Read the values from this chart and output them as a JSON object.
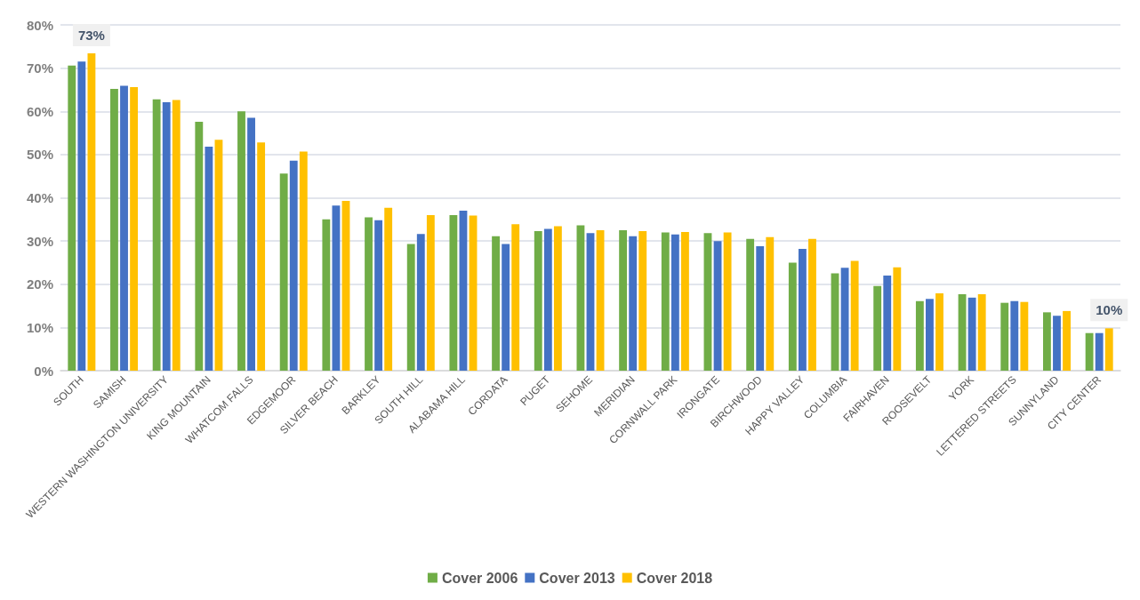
{
  "chart_data": {
    "type": "bar",
    "categories": [
      "SOUTH",
      "SAMISH",
      "WESTERN WASHINGTON UNIVERSITY",
      "KING MOUNTAIN",
      "WHATCOM FALLS",
      "EDGEMOOR",
      "SILVER BEACH",
      "BARKLEY",
      "SOUTH HILL",
      "ALABAMA HILL",
      "CORDATA",
      "PUGET",
      "SEHOME",
      "MERIDIAN",
      "CORNWALL PARK",
      "IRONGATE",
      "BIRCHWOOD",
      "HAPPY VALLEY",
      "COLUMBIA",
      "FAIRHAVEN",
      "ROOSEVELT",
      "YORK",
      "LETTERED STREETS",
      "SUNNYLAND",
      "CITY CENTER"
    ],
    "series": [
      {
        "name": "Cover 2006",
        "color": "#70ad47",
        "values": [
          70.6,
          65.2,
          62.8,
          57.6,
          60.0,
          45.6,
          35.0,
          35.5,
          29.3,
          36.0,
          31.1,
          32.3,
          33.6,
          32.5,
          32.0,
          31.8,
          30.5,
          25.0,
          22.5,
          19.6,
          16.1,
          17.7,
          15.7,
          13.5,
          8.7
        ]
      },
      {
        "name": "Cover 2013",
        "color": "#4472c4",
        "values": [
          71.5,
          65.9,
          62.1,
          51.8,
          58.5,
          48.6,
          38.2,
          34.8,
          31.6,
          37.0,
          29.3,
          32.8,
          31.8,
          31.1,
          31.5,
          30.0,
          28.8,
          28.2,
          23.8,
          22.0,
          16.6,
          16.9,
          16.1,
          12.7,
          8.7
        ]
      },
      {
        "name": "Cover 2018",
        "color": "#ffc000",
        "values": [
          73.4,
          65.6,
          62.6,
          53.4,
          52.8,
          50.7,
          39.3,
          37.7,
          36.0,
          35.9,
          33.9,
          33.4,
          32.5,
          32.3,
          32.1,
          32.0,
          30.9,
          30.5,
          25.4,
          23.9,
          17.9,
          17.7,
          15.9,
          13.8,
          9.8
        ],
        "value_labels": [
          "73%",
          null,
          null,
          null,
          null,
          null,
          null,
          null,
          null,
          null,
          null,
          null,
          null,
          null,
          null,
          null,
          null,
          null,
          null,
          null,
          null,
          null,
          null,
          null,
          "10%"
        ]
      }
    ],
    "ylim": [
      0,
      80
    ],
    "yticks": [
      {
        "value": 0,
        "label": "0%"
      },
      {
        "value": 10,
        "label": "10%"
      },
      {
        "value": 20,
        "label": "20%"
      },
      {
        "value": 30,
        "label": "30%"
      },
      {
        "value": 40,
        "label": "40%"
      },
      {
        "value": 50,
        "label": "50%"
      },
      {
        "value": 60,
        "label": "60%"
      },
      {
        "value": 70,
        "label": "70%"
      },
      {
        "value": 80,
        "label": "80%"
      }
    ],
    "grid": "y",
    "legend": "bottom"
  }
}
